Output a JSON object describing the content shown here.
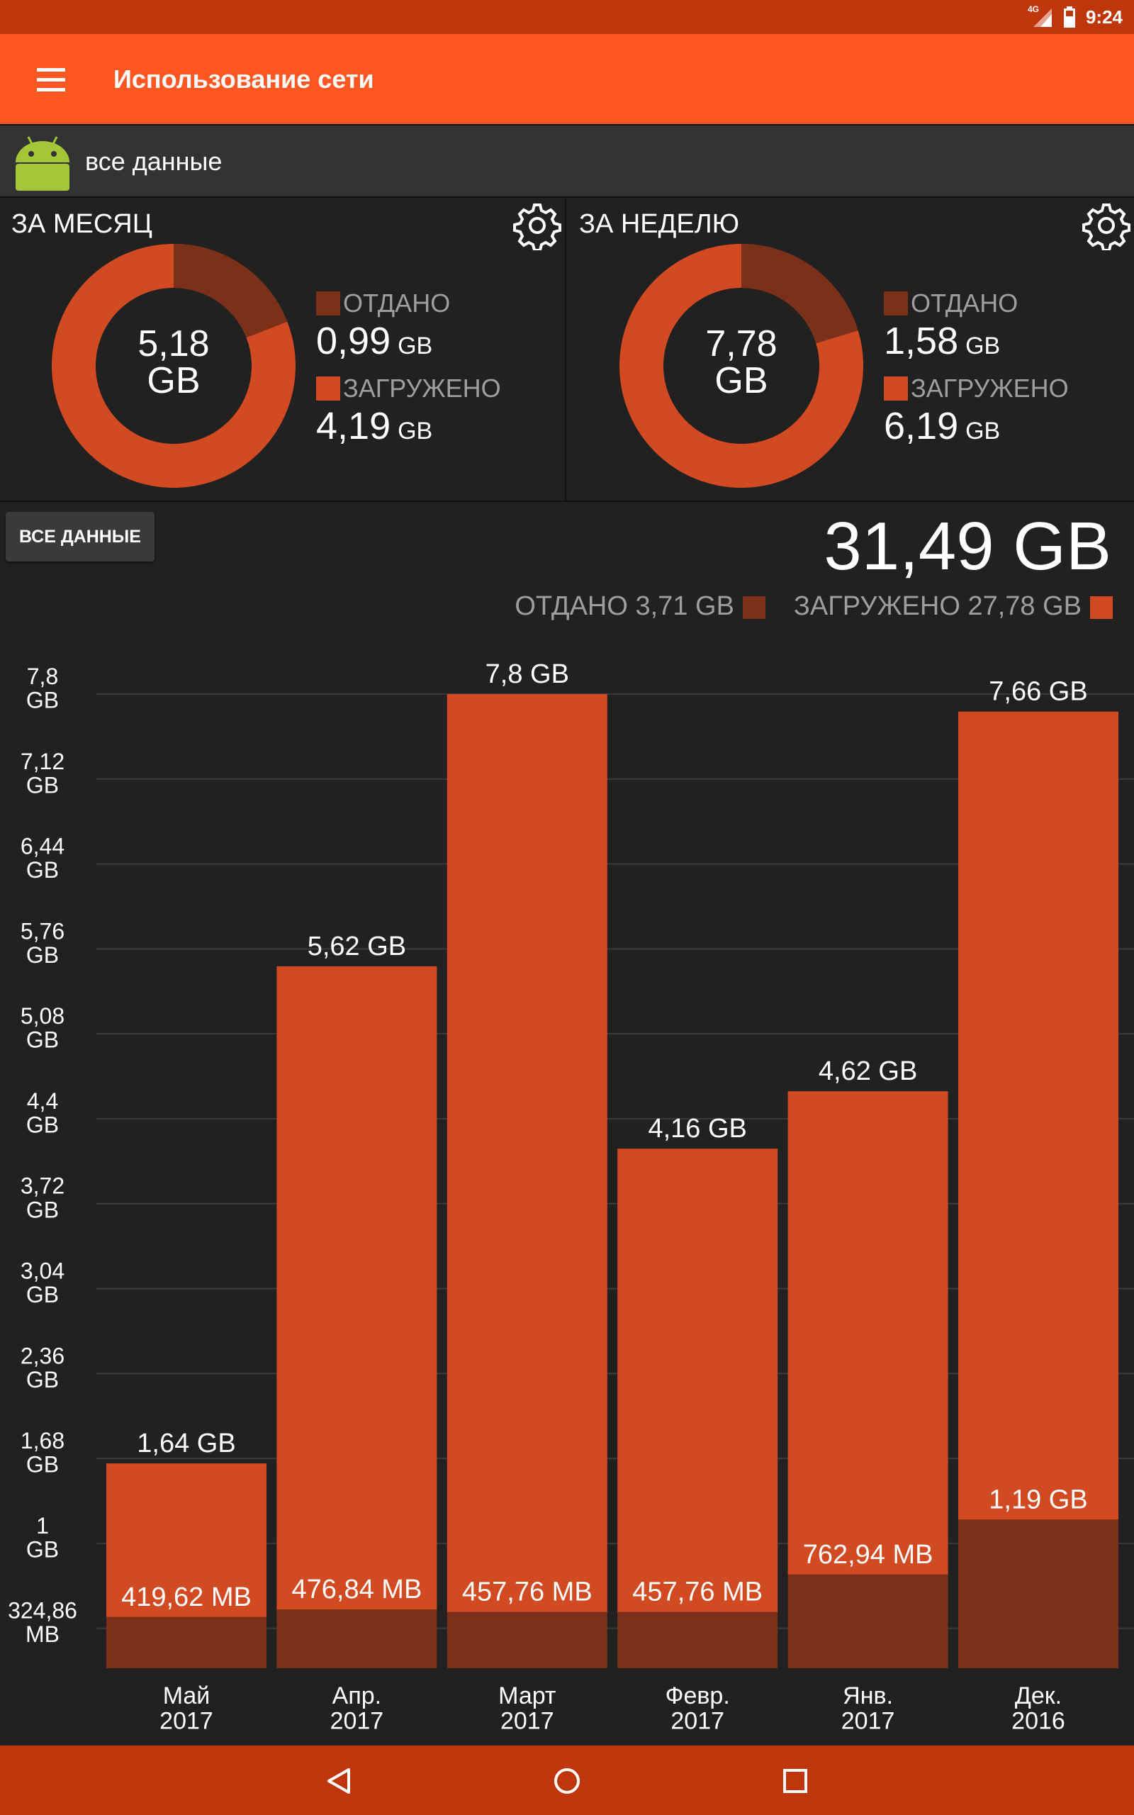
{
  "status_bar": {
    "time": "9:24",
    "network": "4G"
  },
  "app_bar": {
    "title": "Использование сети"
  },
  "app_selector": {
    "label": "все данные"
  },
  "colors": {
    "uploaded": "#7a3019",
    "downloaded": "#d14a22",
    "app_bar": "#ff5722",
    "status_bar": "#bf360c"
  },
  "month": {
    "title": "ЗА МЕСЯЦ",
    "total_value": "5,18",
    "total_unit": "GB",
    "uploaded_label": "ОТДАНО",
    "uploaded_value": "0,99",
    "uploaded_unit": "GB",
    "downloaded_label": "ЗАГРУЖЕНО",
    "downloaded_value": "4,19",
    "downloaded_unit": "GB",
    "uploaded_gb": 0.99,
    "downloaded_gb": 4.19
  },
  "week": {
    "title": "ЗА НЕДЕЛЮ",
    "total_value": "7,78",
    "total_unit": "GB",
    "uploaded_label": "ОТДАНО",
    "uploaded_value": "1,58",
    "uploaded_unit": "GB",
    "downloaded_label": "ЗАГРУЖЕНО",
    "downloaded_value": "6,19",
    "downloaded_unit": "GB",
    "uploaded_gb": 1.58,
    "downloaded_gb": 6.19
  },
  "filter_button": "ВСЕ ДАННЫЕ",
  "total": "31,49 GB",
  "legend": {
    "uploaded": "ОТДАНО 3,71 GB",
    "downloaded": "ЗАГРУЖЕНО 27,78 GB"
  },
  "chart_data": {
    "type": "bar",
    "stacked": true,
    "categories": [
      "Май\n2017",
      "Апр.\n2017",
      "Март\n2017",
      "Февр.\n2017",
      "Янв.\n2017",
      "Дек.\n2016"
    ],
    "series": [
      {
        "name": "ОТДАНО",
        "values_gb": [
          0.41,
          0.47,
          0.45,
          0.45,
          0.75,
          1.19
        ],
        "labels": [
          "419,62 MB",
          "476,84 MB",
          "457,76 MB",
          "457,76 MB",
          "762,94 MB",
          "1,19 GB"
        ]
      },
      {
        "name": "ЗАГРУЖЕНО",
        "values_gb": [
          1.23,
          5.15,
          7.35,
          3.71,
          3.87,
          6.47
        ]
      }
    ],
    "totals_gb": [
      1.64,
      5.62,
      7.8,
      4.16,
      4.62,
      7.66
    ],
    "total_labels": [
      "1,64 GB",
      "5,62 GB",
      "7,8 GB",
      "4,16 GB",
      "4,62 GB",
      "7,66 GB"
    ],
    "yticks": [
      "7,8\nGB",
      "7,12\nGB",
      "6,44\nGB",
      "5,76\nGB",
      "5,08\nGB",
      "4,4\nGB",
      "3,72\nGB",
      "3,04\nGB",
      "2,36\nGB",
      "1,68\nGB",
      "1\nGB",
      "324,86\nMB"
    ],
    "ytick_values_gb": [
      7.8,
      7.12,
      6.44,
      5.76,
      5.08,
      4.4,
      3.72,
      3.04,
      2.36,
      1.68,
      1.0,
      0.32
    ],
    "ylim": [
      0,
      7.8
    ],
    "grid": true
  }
}
